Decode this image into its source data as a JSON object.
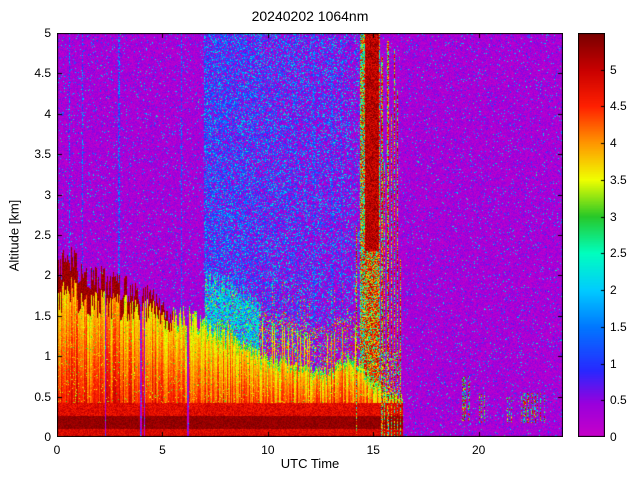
{
  "figure": {
    "title": "20240202 1064nm",
    "background_color": "#ffffff"
  },
  "chart_data": {
    "type": "heatmap",
    "title": "20240202 1064nm",
    "xlabel": "UTC Time",
    "ylabel": "Altitude [km]",
    "xlim": [
      0,
      24
    ],
    "ylim": [
      0,
      5
    ],
    "x_ticks": [
      0,
      5,
      10,
      15,
      20
    ],
    "y_ticks": [
      0,
      0.5,
      1,
      1.5,
      2,
      2.5,
      3,
      3.5,
      4,
      4.5,
      5
    ],
    "grid": false,
    "colorbar": {
      "range": [
        0,
        5.5
      ],
      "ticks": [
        0,
        0.5,
        1,
        1.5,
        2,
        2.5,
        3,
        3.5,
        4,
        4.5,
        5
      ],
      "position": "right"
    },
    "colormap": [
      [
        0.0,
        "#c800c8"
      ],
      [
        0.45,
        "#9a00dc"
      ],
      [
        0.9,
        "#2828ff"
      ],
      [
        1.5,
        "#0078ff"
      ],
      [
        2.0,
        "#00ccff"
      ],
      [
        2.5,
        "#00ffbe"
      ],
      [
        3.0,
        "#28c828"
      ],
      [
        3.5,
        "#f0ff00"
      ],
      [
        4.0,
        "#ff9600"
      ],
      [
        4.5,
        "#ff2000"
      ],
      [
        5.0,
        "#c80000"
      ],
      [
        5.5,
        "#780000"
      ]
    ],
    "features": {
      "signal_end_utc": 16.42,
      "boundary_layer_top": {
        "x": [
          0,
          0.7,
          1.5,
          2.2,
          3.0,
          3.8,
          4.5,
          5.2,
          6.0,
          6.8,
          7.5,
          8.2,
          9.0,
          9.8,
          10.5,
          11.2,
          12.0,
          12.8,
          13.5,
          14.0,
          14.5,
          15.0,
          15.6,
          16.1,
          16.42
        ],
        "top_km": [
          2.08,
          2.18,
          2.0,
          1.93,
          1.86,
          1.78,
          1.68,
          1.58,
          1.5,
          1.43,
          1.36,
          1.27,
          1.16,
          1.03,
          0.97,
          0.92,
          0.86,
          0.82,
          0.92,
          1.0,
          0.85,
          0.68,
          0.58,
          0.52,
          0.5
        ]
      },
      "surface_dark_layer": {
        "z_km": [
          0.1,
          0.26
        ],
        "value": 5.3
      },
      "near_surface_layer": {
        "z_km": [
          0.26,
          0.42
        ],
        "value": 4.7
      },
      "dark_red_cap_until_utc": 5.5,
      "gap_times_utc": [
        2.3,
        4.0,
        4.15,
        6.2
      ],
      "noise_stripe_times_utc": [
        0.6,
        1.2,
        2.95,
        5.9,
        11.35,
        12.2,
        13.05,
        13.5
      ],
      "dense_noise_region": {
        "x": [
          6.95,
          14.35
        ],
        "blue_fraction_start": 0.55,
        "blue_fraction_min": 0.18
      },
      "cyan_fuzz_above_layer": {
        "x": [
          7.0,
          9.6
        ],
        "depth_km": 0.6
      },
      "speckle_above_layer": {
        "x": [
          9.6,
          16.3
        ],
        "depth_km": 0.55
      },
      "cloud_event": {
        "main": {
          "x": [
            14.38,
            15.32
          ],
          "core_x": [
            14.6,
            15.25
          ],
          "top_km": 5.0,
          "dark_red_above_km": 2.3
        },
        "spikes": [
          {
            "x": 14.22,
            "w": 0.02,
            "top_km": 2.6
          },
          {
            "x": 15.42,
            "w": 0.03,
            "top_km": 4.7
          },
          {
            "x": 15.55,
            "w": 0.022,
            "top_km": 3.4
          },
          {
            "x": 15.7,
            "w": 0.028,
            "top_km": 4.9
          },
          {
            "x": 15.85,
            "w": 0.022,
            "top_km": 4.0
          },
          {
            "x": 16.0,
            "w": 0.028,
            "top_km": 4.8
          },
          {
            "x": 16.16,
            "w": 0.03,
            "top_km": 4.3
          },
          {
            "x": 16.3,
            "w": 0.02,
            "top_km": 2.2
          }
        ]
      },
      "late_echo_groups": [
        {
          "x": [
            19.2,
            19.6
          ],
          "z": [
            0.2,
            0.75
          ]
        },
        {
          "x": [
            20.0,
            20.45
          ],
          "z": [
            0.17,
            0.55
          ]
        },
        {
          "x": [
            21.2,
            21.65
          ],
          "z": [
            0.17,
            0.5
          ]
        },
        {
          "x": [
            22.0,
            23.15
          ],
          "z": [
            0.17,
            0.55
          ]
        }
      ]
    }
  }
}
